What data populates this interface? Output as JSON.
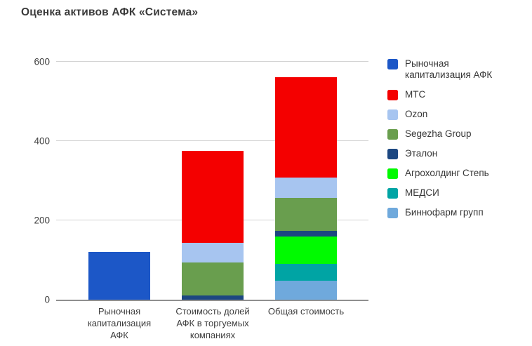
{
  "chart_data": {
    "type": "bar",
    "stacked": true,
    "title": "Оценка активов АФК «Система»",
    "categories": [
      "Рыночная капитализация АФК",
      "Стоимость долей АФК в торгуемых компаниях",
      "Общая стоимость"
    ],
    "tick_lines": [
      [
        "Рыночная",
        "капитализация",
        "АФК"
      ],
      [
        "Стоимость долей",
        "АФК в торгуемых",
        "компаниях"
      ],
      [
        "Общая стоимость"
      ]
    ],
    "series": [
      {
        "name": "Рыночная капитализация АФК",
        "color": "#1c57c7",
        "values": [
          120,
          0,
          0
        ]
      },
      {
        "name": "МТС",
        "color": "#f40000",
        "values": [
          0,
          232,
          253
        ]
      },
      {
        "name": "Ozon",
        "color": "#a7c5f0",
        "values": [
          0,
          50,
          51
        ]
      },
      {
        "name": "Segezha Group",
        "color": "#699e4e",
        "values": [
          0,
          84,
          83
        ]
      },
      {
        "name": "Эталон",
        "color": "#1c4781",
        "values": [
          0,
          10,
          15
        ]
      },
      {
        "name": "Агрохолдинг Степь",
        "color": "#00fa00",
        "values": [
          0,
          0,
          68
        ]
      },
      {
        "name": "МЕДСИ",
        "color": "#00a4a4",
        "values": [
          0,
          0,
          44
        ]
      },
      {
        "name": "Биннофарм групп",
        "color": "#6fa9dc",
        "values": [
          0,
          0,
          47
        ]
      }
    ],
    "totals": [
      120,
      376,
      561
    ],
    "ylim": [
      0,
      600
    ],
    "yticks": [
      0,
      200,
      400,
      600
    ],
    "grid": true,
    "legend_position": "right",
    "colors": {
      "axis": "#8f8f8f",
      "gridline": "#d2d2d2",
      "title_text": "#3a3a3a",
      "tick_text": "#3f3f3f"
    }
  }
}
